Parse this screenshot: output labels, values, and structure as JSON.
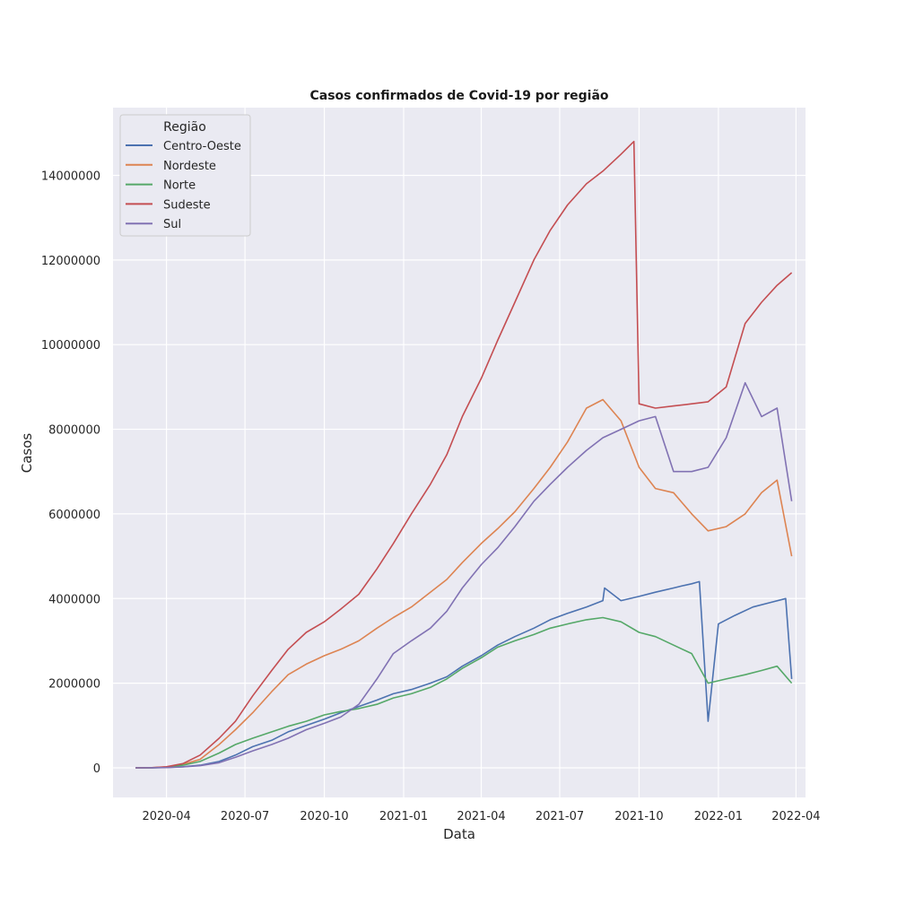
{
  "chart_data": {
    "type": "line",
    "title": "Casos confirmados de Covid-19 por região",
    "xlabel": "Data",
    "ylabel": "Casos",
    "legend_title": "Região",
    "legend_position": "top-left",
    "grid": true,
    "background_color": "#eaeaf2",
    "x_ticks": [
      "2020-04",
      "2020-07",
      "2020-10",
      "2021-01",
      "2021-04",
      "2021-07",
      "2021-10",
      "2022-01",
      "2022-04"
    ],
    "y_ticks": [
      0,
      2000000,
      4000000,
      6000000,
      8000000,
      10000000,
      12000000,
      14000000
    ],
    "y_tick_labels": [
      "0",
      "2000000",
      "4000000",
      "6000000",
      "8000000",
      "10000000",
      "12000000",
      "14000000"
    ],
    "xlim": [
      "2020-01-30",
      "2022-04-12"
    ],
    "ylim": [
      -700000,
      15600000
    ],
    "series": [
      {
        "name": "Centro-Oeste",
        "color": "#4c72b0",
        "x": [
          "2020-02-25",
          "2020-03-15",
          "2020-04-01",
          "2020-04-20",
          "2020-05-10",
          "2020-06-01",
          "2020-06-20",
          "2020-07-10",
          "2020-08-01",
          "2020-08-20",
          "2020-09-10",
          "2020-10-01",
          "2020-10-20",
          "2020-11-10",
          "2020-12-01",
          "2020-12-20",
          "2021-01-10",
          "2021-02-01",
          "2021-02-20",
          "2021-03-10",
          "2021-04-01",
          "2021-04-20",
          "2021-05-10",
          "2021-06-01",
          "2021-06-20",
          "2021-07-10",
          "2021-08-01",
          "2021-08-20",
          "2021-08-22",
          "2021-09-10",
          "2021-10-01",
          "2021-10-20",
          "2021-11-10",
          "2021-11-20",
          "2021-12-01",
          "2021-12-10",
          "2021-12-20",
          "2022-01-01",
          "2022-01-20",
          "2022-02-10",
          "2022-03-01",
          "2022-03-20",
          "2022-03-27"
        ],
        "y": [
          0,
          2000,
          8000,
          25000,
          60000,
          150000,
          300000,
          500000,
          650000,
          850000,
          1000000,
          1150000,
          1300000,
          1450000,
          1600000,
          1750000,
          1850000,
          2000000,
          2150000,
          2400000,
          2650000,
          2900000,
          3100000,
          3300000,
          3500000,
          3650000,
          3800000,
          3950000,
          4250000,
          3950000,
          4050000,
          4150000,
          4250000,
          4300000,
          4350000,
          4400000,
          1100000,
          3400000,
          3600000,
          3800000,
          3900000,
          4000000,
          2100000
        ]
      },
      {
        "name": "Nordeste",
        "color": "#dd8452",
        "x": [
          "2020-02-25",
          "2020-03-15",
          "2020-04-01",
          "2020-04-20",
          "2020-05-10",
          "2020-06-01",
          "2020-06-20",
          "2020-07-10",
          "2020-08-01",
          "2020-08-20",
          "2020-09-10",
          "2020-10-01",
          "2020-10-20",
          "2020-11-10",
          "2020-12-01",
          "2020-12-20",
          "2021-01-10",
          "2021-02-01",
          "2021-02-20",
          "2021-03-10",
          "2021-04-01",
          "2021-04-20",
          "2021-05-10",
          "2021-06-01",
          "2021-06-20",
          "2021-07-10",
          "2021-08-01",
          "2021-08-20",
          "2021-09-10",
          "2021-10-01",
          "2021-10-20",
          "2021-11-10",
          "2021-12-01",
          "2021-12-20",
          "2022-01-10",
          "2022-02-01",
          "2022-02-20",
          "2022-03-10",
          "2022-03-27"
        ],
        "y": [
          0,
          3000,
          20000,
          80000,
          200000,
          550000,
          900000,
          1300000,
          1800000,
          2200000,
          2450000,
          2650000,
          2800000,
          3000000,
          3300000,
          3550000,
          3800000,
          4150000,
          4450000,
          4850000,
          5300000,
          5650000,
          6050000,
          6600000,
          7100000,
          7700000,
          8500000,
          8700000,
          8200000,
          7100000,
          6600000,
          6500000,
          6000000,
          5600000,
          5700000,
          6000000,
          6500000,
          6800000,
          5000000
        ]
      },
      {
        "name": "Norte",
        "color": "#55a868",
        "x": [
          "2020-02-25",
          "2020-03-15",
          "2020-04-01",
          "2020-04-20",
          "2020-05-10",
          "2020-06-01",
          "2020-06-20",
          "2020-07-10",
          "2020-08-01",
          "2020-08-20",
          "2020-09-10",
          "2020-10-01",
          "2020-10-20",
          "2020-11-10",
          "2020-12-01",
          "2020-12-20",
          "2021-01-10",
          "2021-02-01",
          "2021-02-20",
          "2021-03-10",
          "2021-04-01",
          "2021-04-20",
          "2021-05-10",
          "2021-06-01",
          "2021-06-20",
          "2021-07-10",
          "2021-08-01",
          "2021-08-20",
          "2021-09-10",
          "2021-10-01",
          "2021-10-20",
          "2021-11-10",
          "2021-12-01",
          "2021-12-20",
          "2022-01-10",
          "2022-02-01",
          "2022-02-20",
          "2022-03-10",
          "2022-03-27"
        ],
        "y": [
          0,
          2000,
          15000,
          60000,
          150000,
          350000,
          550000,
          700000,
          850000,
          980000,
          1100000,
          1250000,
          1330000,
          1400000,
          1500000,
          1650000,
          1750000,
          1900000,
          2100000,
          2350000,
          2600000,
          2850000,
          3000000,
          3150000,
          3300000,
          3400000,
          3500000,
          3550000,
          3450000,
          3200000,
          3100000,
          2900000,
          2700000,
          2000000,
          2100000,
          2200000,
          2300000,
          2400000,
          2000000
        ]
      },
      {
        "name": "Sudeste",
        "color": "#c44e52",
        "x": [
          "2020-02-25",
          "2020-03-15",
          "2020-04-01",
          "2020-04-20",
          "2020-05-10",
          "2020-06-01",
          "2020-06-20",
          "2020-07-10",
          "2020-08-01",
          "2020-08-20",
          "2020-09-10",
          "2020-10-01",
          "2020-10-20",
          "2020-11-10",
          "2020-12-01",
          "2020-12-20",
          "2021-01-10",
          "2021-02-01",
          "2021-02-20",
          "2021-03-10",
          "2021-04-01",
          "2021-04-20",
          "2021-05-10",
          "2021-06-01",
          "2021-06-20",
          "2021-07-10",
          "2021-08-01",
          "2021-08-20",
          "2021-09-10",
          "2021-09-25",
          "2021-10-01",
          "2021-10-20",
          "2021-11-10",
          "2021-12-01",
          "2021-12-20",
          "2022-01-10",
          "2022-02-01",
          "2022-02-20",
          "2022-03-10",
          "2022-03-27"
        ],
        "y": [
          0,
          3000,
          25000,
          100000,
          300000,
          700000,
          1100000,
          1700000,
          2300000,
          2800000,
          3200000,
          3450000,
          3750000,
          4100000,
          4700000,
          5300000,
          6000000,
          6700000,
          7400000,
          8300000,
          9200000,
          10100000,
          11000000,
          12000000,
          12700000,
          13300000,
          13800000,
          14100000,
          14500000,
          14800000,
          8600000,
          8500000,
          8550000,
          8600000,
          8650000,
          9000000,
          10500000,
          11000000,
          11400000,
          11700000
        ]
      },
      {
        "name": "Sul",
        "color": "#8172b3",
        "x": [
          "2020-02-25",
          "2020-03-15",
          "2020-04-01",
          "2020-04-20",
          "2020-05-10",
          "2020-06-01",
          "2020-06-20",
          "2020-07-10",
          "2020-08-01",
          "2020-08-20",
          "2020-09-10",
          "2020-10-01",
          "2020-10-20",
          "2020-11-10",
          "2020-12-01",
          "2020-12-20",
          "2021-01-10",
          "2021-02-01",
          "2021-02-20",
          "2021-03-10",
          "2021-04-01",
          "2021-04-20",
          "2021-05-10",
          "2021-06-01",
          "2021-06-20",
          "2021-07-10",
          "2021-08-01",
          "2021-08-20",
          "2021-09-10",
          "2021-10-01",
          "2021-10-20",
          "2021-11-10",
          "2021-12-01",
          "2021-12-20",
          "2022-01-10",
          "2022-02-01",
          "2022-02-20",
          "2022-03-10",
          "2022-03-27"
        ],
        "y": [
          0,
          1000,
          5000,
          20000,
          50000,
          120000,
          250000,
          400000,
          550000,
          700000,
          900000,
          1050000,
          1200000,
          1500000,
          2100000,
          2700000,
          3000000,
          3300000,
          3700000,
          4250000,
          4800000,
          5200000,
          5700000,
          6300000,
          6700000,
          7100000,
          7500000,
          7800000,
          8000000,
          8200000,
          8300000,
          7000000,
          7000000,
          7100000,
          7800000,
          9100000,
          8300000,
          8500000,
          6300000
        ]
      }
    ]
  }
}
